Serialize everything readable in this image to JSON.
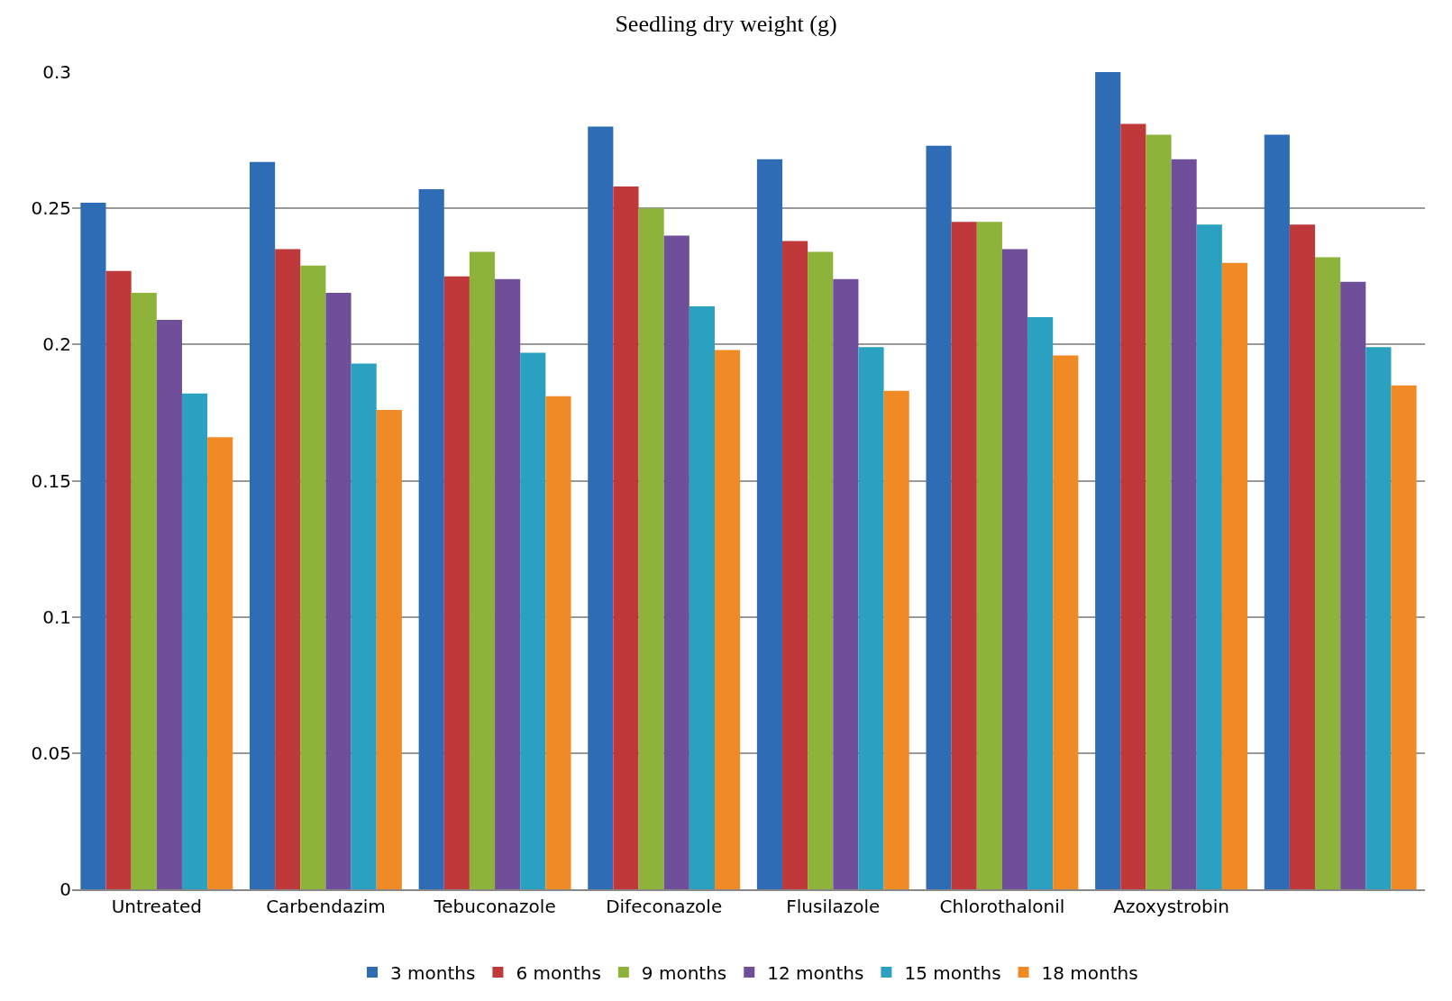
{
  "chart_data": {
    "type": "bar",
    "title": "Seedling dry weight (g)",
    "categories": [
      "Untreated",
      "Carbendazim",
      "Tebuconazole",
      "Difeconazole",
      "Flusilazole",
      "Chlorothalonil",
      "Azoxystrobin",
      null
    ],
    "series": [
      {
        "name": "3 months",
        "color": "#2e6db5",
        "values": [
          0.252,
          0.267,
          0.257,
          0.28,
          0.268,
          0.273,
          0.3,
          0.277
        ]
      },
      {
        "name": "6 months",
        "color": "#c0393a",
        "values": [
          0.227,
          0.235,
          0.225,
          0.258,
          0.238,
          0.245,
          0.281,
          0.244
        ]
      },
      {
        "name": "9 months",
        "color": "#8db33a",
        "values": [
          0.219,
          0.229,
          0.234,
          0.25,
          0.234,
          0.245,
          0.277,
          0.232
        ]
      },
      {
        "name": "12 months",
        "color": "#6f4f9a",
        "values": [
          0.209,
          0.219,
          0.224,
          0.24,
          0.224,
          0.235,
          0.268,
          0.223
        ]
      },
      {
        "name": "15 months",
        "color": "#2aa1c0",
        "values": [
          0.182,
          0.193,
          0.197,
          0.214,
          0.199,
          0.21,
          0.244,
          0.199
        ]
      },
      {
        "name": "18 months",
        "color": "#f08a24",
        "values": [
          0.166,
          0.176,
          0.181,
          0.198,
          0.183,
          0.196,
          0.23,
          0.185
        ]
      }
    ],
    "ylim": [
      0,
      0.3
    ],
    "yticks": [
      0,
      0.05,
      0.1,
      0.15,
      0.2,
      0.25,
      0.3
    ],
    "grid": "y",
    "legend": "bottom"
  }
}
